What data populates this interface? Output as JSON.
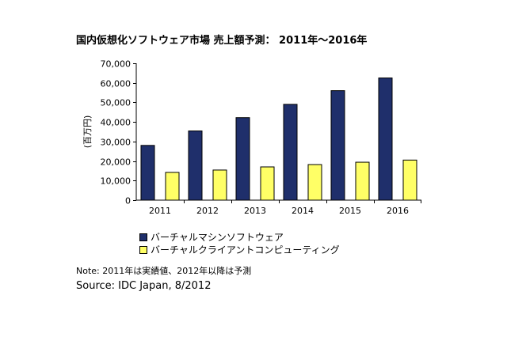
{
  "title": "国内仮想化ソフトウェア市場 売上額予測： 2011年～2016年",
  "chart_data": {
    "type": "bar",
    "categories": [
      "2011",
      "2012",
      "2013",
      "2014",
      "2015",
      "2016"
    ],
    "series": [
      {
        "name": "バーチャルマシンソフトウェア",
        "color": "#1f2f6b",
        "values": [
          28000,
          35400,
          42200,
          49000,
          56000,
          62500
        ]
      },
      {
        "name": "バーチャルクライアントコンピューティング",
        "color": "#ffff66",
        "values": [
          14200,
          15400,
          17000,
          18200,
          19400,
          20500
        ]
      }
    ],
    "ylabel": "(百万円)",
    "ylim": [
      0,
      70000
    ],
    "yticks": [
      0,
      10000,
      20000,
      30000,
      40000,
      50000,
      60000,
      70000
    ],
    "ytick_labels": [
      "0",
      "10,000",
      "20,000",
      "30,000",
      "40,000",
      "50,000",
      "60,000",
      "70,000"
    ],
    "grid": false,
    "legend_position": "bottom"
  },
  "note": "Note: 2011年は実績値、2012年以降は予測",
  "source": "Source: IDC Japan, 8/2012"
}
